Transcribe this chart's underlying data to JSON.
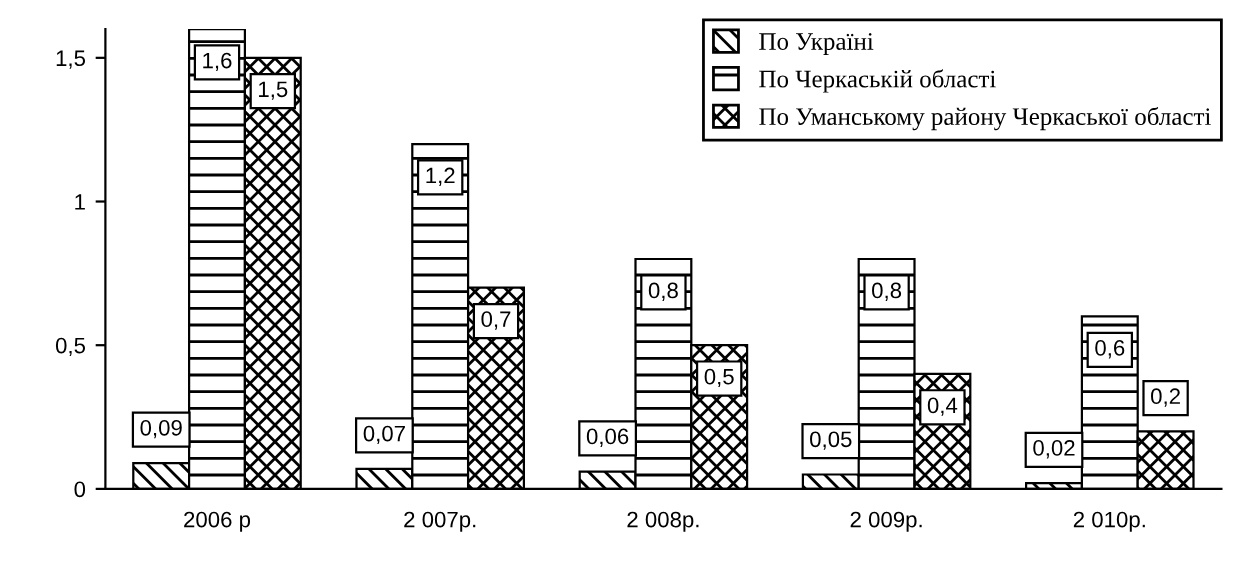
{
  "chart_data": {
    "type": "bar",
    "categories": [
      "2006 р",
      "2 007р.",
      "2 008р.",
      "2 009р.",
      "2 010р."
    ],
    "series": [
      {
        "name": "По Україні",
        "color": "#000000",
        "values": [
          0.09,
          0.07,
          0.06,
          0.05,
          0.02
        ],
        "value_labels": [
          "0,09",
          "0,07",
          "0,06",
          "0,05",
          "0,02"
        ]
      },
      {
        "name": "По Черкаській області",
        "color": "#000000",
        "values": [
          1.6,
          1.2,
          0.8,
          0.8,
          0.6
        ],
        "value_labels": [
          "1,6",
          "1,2",
          "0,8",
          "0,8",
          "0,6"
        ]
      },
      {
        "name": "По Уманському району Черкаської області",
        "color": "#000000",
        "values": [
          1.5,
          0.7,
          0.5,
          0.4,
          0.2
        ],
        "value_labels": [
          "1,5",
          "0,7",
          "0,5",
          "0,4",
          "0,2"
        ]
      }
    ],
    "ylim": [
      0,
      1.6
    ],
    "yticks": [
      0,
      {
        "value": 0.5,
        "label": "0,5"
      },
      1,
      {
        "value": 1.5,
        "label": "1,5"
      }
    ],
    "legend": "top right"
  }
}
